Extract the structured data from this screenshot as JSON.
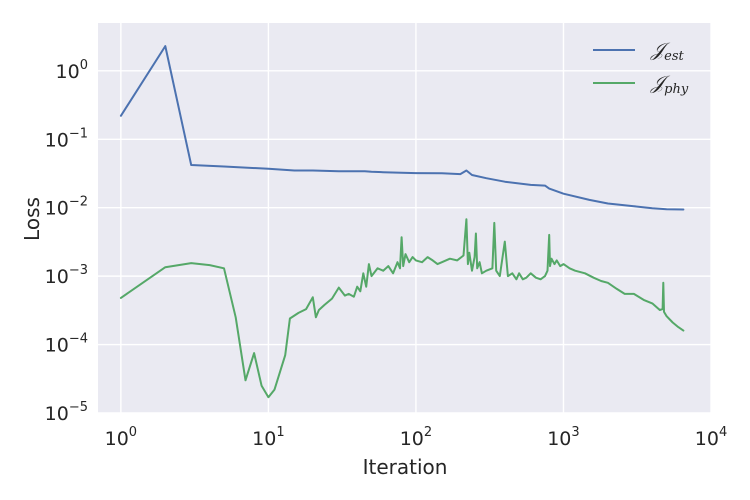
{
  "chart_data": {
    "type": "line",
    "xlabel": "Iteration",
    "ylabel": "Loss",
    "xscale": "log",
    "yscale": "log",
    "xlim": [
      0.7,
      10000
    ],
    "ylim": [
      1e-05,
      5
    ],
    "grid": true,
    "legend_position": "top-right",
    "x_ticks": [
      {
        "base": "10",
        "exp": "0",
        "value": 1
      },
      {
        "base": "10",
        "exp": "1",
        "value": 10
      },
      {
        "base": "10",
        "exp": "2",
        "value": 100
      },
      {
        "base": "10",
        "exp": "3",
        "value": 1000
      },
      {
        "base": "10",
        "exp": "4",
        "value": 10000
      }
    ],
    "y_ticks": [
      {
        "base": "10",
        "exp": "0",
        "value": 1
      },
      {
        "base": "10",
        "exp": "−1",
        "value": 0.1
      },
      {
        "base": "10",
        "exp": "−2",
        "value": 0.01
      },
      {
        "base": "10",
        "exp": "−3",
        "value": 0.001
      },
      {
        "base": "10",
        "exp": "−4",
        "value": 0.0001
      },
      {
        "base": "10",
        "exp": "−5",
        "value": 1e-05
      }
    ],
    "series": [
      {
        "name": "J_est",
        "legend_main": "𝒥",
        "legend_sub": "est",
        "color": "#4c72b0",
        "x": [
          1,
          2,
          3,
          5,
          10,
          15,
          20,
          30,
          45,
          50,
          60,
          80,
          100,
          150,
          200,
          220,
          240,
          300,
          400,
          600,
          750,
          800,
          1000,
          1500,
          2000,
          3000,
          4000,
          5000,
          6500
        ],
        "y": [
          0.22,
          2.3,
          0.042,
          0.04,
          0.037,
          0.035,
          0.035,
          0.034,
          0.034,
          0.0335,
          0.033,
          0.0325,
          0.032,
          0.0318,
          0.031,
          0.035,
          0.03,
          0.027,
          0.024,
          0.0215,
          0.021,
          0.019,
          0.016,
          0.013,
          0.0115,
          0.0105,
          0.0098,
          0.0095,
          0.0094
        ]
      },
      {
        "name": "J_phy",
        "legend_main": "𝒥",
        "legend_sub": "phy",
        "color": "#55a868",
        "x": [
          1,
          2,
          3,
          4,
          5,
          6,
          7,
          8,
          9,
          10,
          11,
          13,
          14,
          16,
          18,
          20,
          21,
          22,
          24,
          27,
          30,
          33,
          35,
          38,
          40,
          42,
          44,
          46,
          48,
          50,
          55,
          60,
          65,
          70,
          75,
          78,
          80,
          82,
          85,
          90,
          95,
          100,
          110,
          120,
          130,
          140,
          150,
          170,
          190,
          210,
          220,
          225,
          230,
          240,
          250,
          255,
          260,
          270,
          280,
          300,
          330,
          340,
          350,
          370,
          400,
          420,
          450,
          480,
          500,
          530,
          560,
          600,
          650,
          700,
          750,
          780,
          800,
          810,
          830,
          870,
          900,
          950,
          1000,
          1100,
          1200,
          1400,
          1600,
          1800,
          2000,
          2300,
          2600,
          3000,
          3500,
          4000,
          4500,
          4700,
          4750,
          4800,
          5000,
          5500,
          6000,
          6500
        ],
        "y": [
          0.00048,
          0.00135,
          0.00155,
          0.00145,
          0.0013,
          0.00025,
          3e-05,
          7.5e-05,
          2.5e-05,
          1.7e-05,
          2.2e-05,
          7e-05,
          0.00024,
          0.00029,
          0.00033,
          0.00049,
          0.00025,
          0.00032,
          0.00038,
          0.00047,
          0.00068,
          0.00052,
          0.00055,
          0.0005,
          0.0007,
          0.0006,
          0.0011,
          0.0007,
          0.0015,
          0.001,
          0.0013,
          0.0012,
          0.0014,
          0.0011,
          0.0016,
          0.0013,
          0.0037,
          0.0014,
          0.0021,
          0.0016,
          0.0019,
          0.0017,
          0.0016,
          0.0019,
          0.0017,
          0.0015,
          0.0016,
          0.0018,
          0.0017,
          0.002,
          0.0068,
          0.0015,
          0.0022,
          0.0012,
          0.0019,
          0.0042,
          0.0013,
          0.0016,
          0.0011,
          0.0012,
          0.0013,
          0.006,
          0.0012,
          0.001,
          0.0032,
          0.001,
          0.0011,
          0.0009,
          0.0011,
          0.0009,
          0.00095,
          0.0011,
          0.00095,
          0.0009,
          0.001,
          0.0012,
          0.004,
          0.0014,
          0.0018,
          0.0015,
          0.0017,
          0.0014,
          0.0015,
          0.0013,
          0.0012,
          0.0011,
          0.00095,
          0.00085,
          0.0008,
          0.00065,
          0.00055,
          0.00055,
          0.00045,
          0.0004,
          0.00032,
          0.00033,
          0.0008,
          0.0003,
          0.00026,
          0.00021,
          0.00018,
          0.00016
        ]
      }
    ]
  }
}
